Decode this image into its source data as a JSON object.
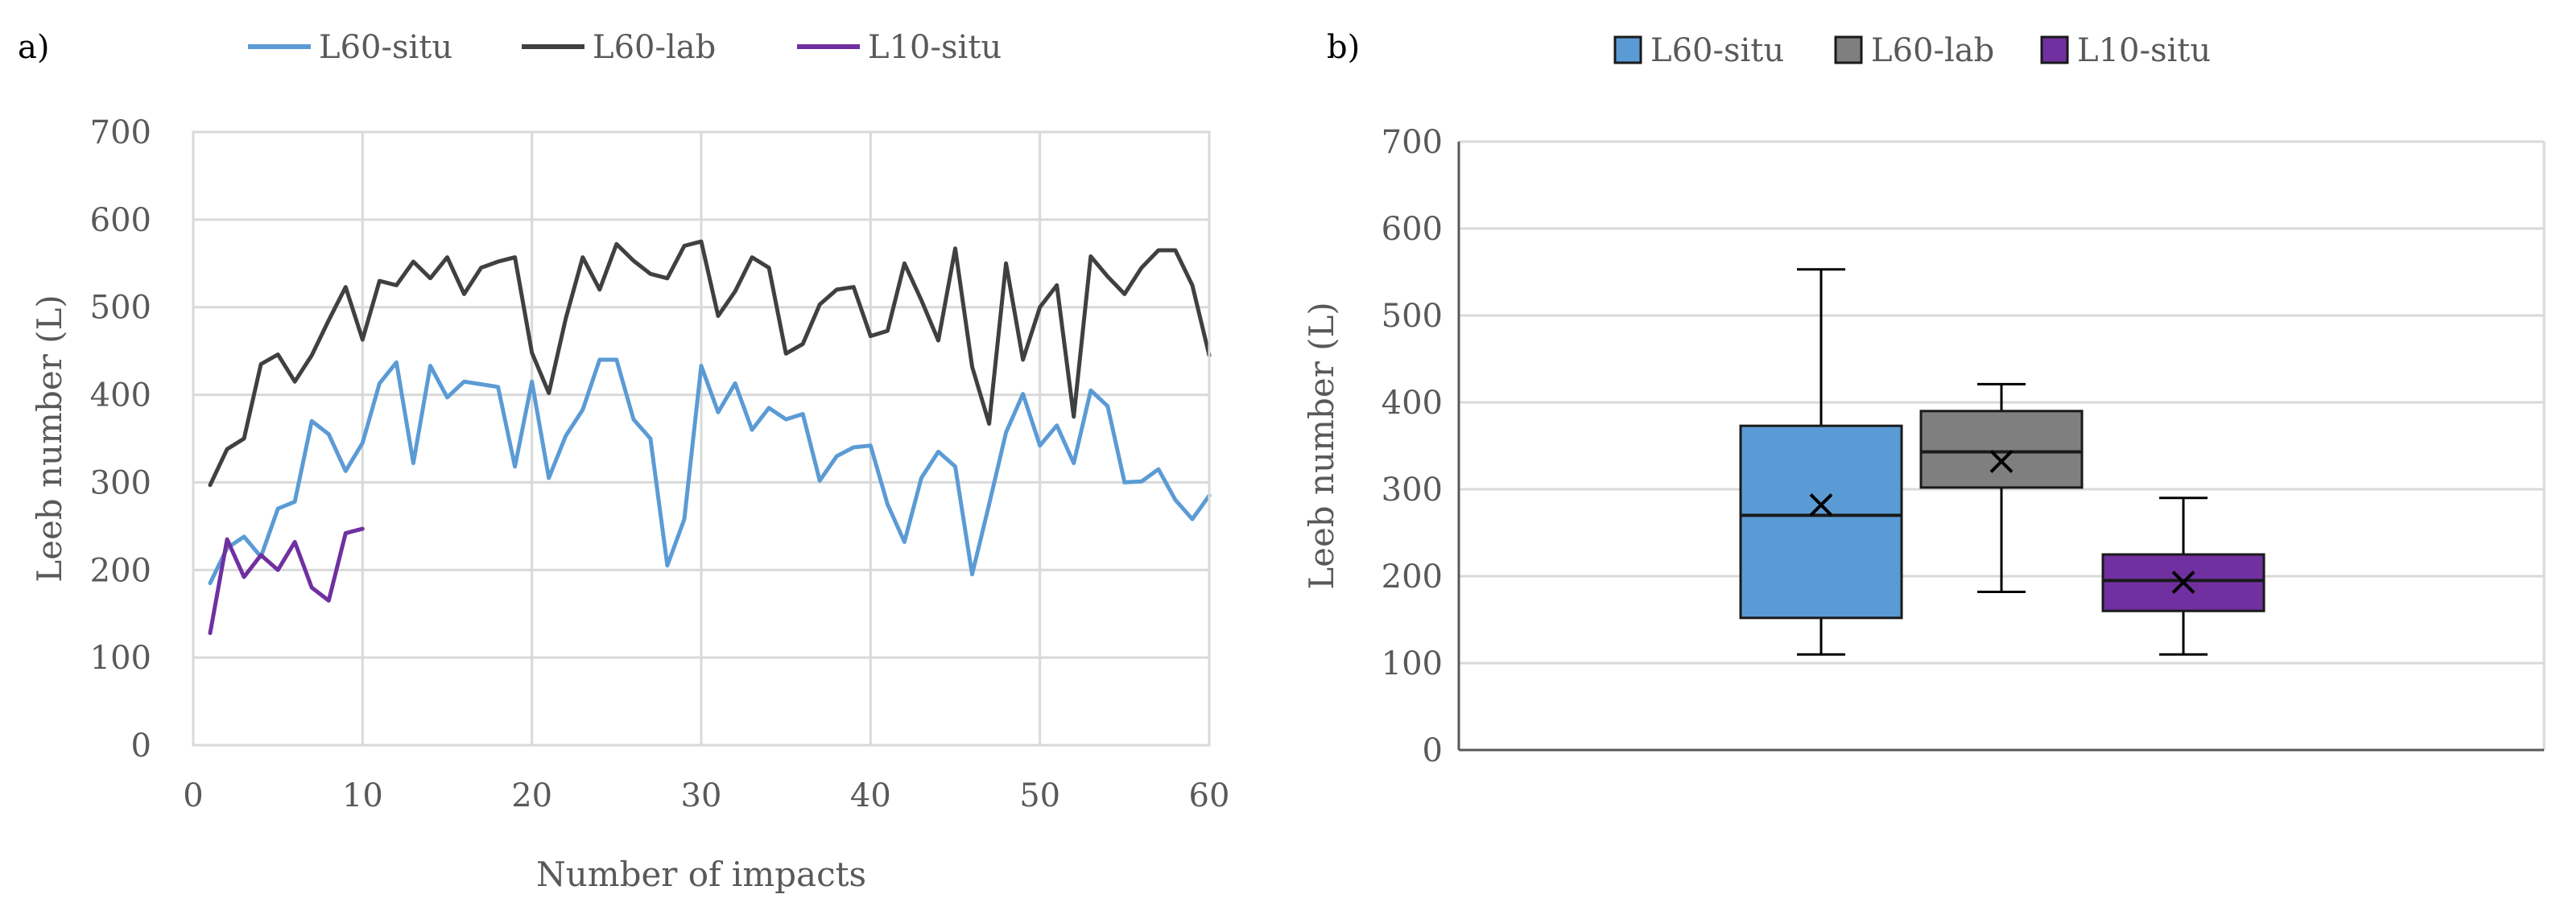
{
  "panels": {
    "a": {
      "label": "a)"
    },
    "b": {
      "label": "b)"
    }
  },
  "chart_data": [
    {
      "type": "line",
      "panel": "a",
      "title": "",
      "xlabel": "Number of impacts",
      "ylabel": "Leeb number (L)",
      "xlim": [
        0,
        60
      ],
      "ylim": [
        0,
        700
      ],
      "xticks": [
        0,
        10,
        20,
        30,
        40,
        50,
        60
      ],
      "yticks": [
        0,
        100,
        200,
        300,
        400,
        500,
        600,
        700
      ],
      "grid": true,
      "legend": "top",
      "series": [
        {
          "name": "L60-situ",
          "color": "#5b9bd5",
          "x": [
            1,
            2,
            3,
            4,
            5,
            6,
            7,
            8,
            9,
            10,
            11,
            12,
            13,
            14,
            15,
            16,
            17,
            18,
            19,
            20,
            21,
            22,
            23,
            24,
            25,
            26,
            27,
            28,
            29,
            30,
            31,
            32,
            33,
            34,
            35,
            36,
            37,
            38,
            39,
            40,
            41,
            42,
            43,
            44,
            45,
            46,
            47,
            48,
            49,
            50,
            51,
            52,
            53,
            54,
            55,
            56,
            57,
            58,
            59,
            60
          ],
          "values": [
            185,
            225,
            238,
            215,
            270,
            278,
            370,
            355,
            313,
            345,
            413,
            437,
            322,
            433,
            397,
            415,
            412,
            409,
            318,
            415,
            305,
            353,
            383,
            440,
            440,
            372,
            350,
            205,
            258,
            433,
            380,
            413,
            360,
            385,
            372,
            378,
            302,
            330,
            340,
            342,
            275,
            232,
            305,
            335,
            318,
            195,
            275,
            357,
            401,
            342,
            365,
            322,
            405,
            387,
            300,
            301,
            315,
            280,
            258,
            285
          ]
        },
        {
          "name": "L60-lab",
          "color": "#404040",
          "x": [
            1,
            2,
            3,
            4,
            5,
            6,
            7,
            8,
            9,
            10,
            11,
            12,
            13,
            14,
            15,
            16,
            17,
            18,
            19,
            20,
            21,
            22,
            23,
            24,
            25,
            26,
            27,
            28,
            29,
            30,
            31,
            32,
            33,
            34,
            35,
            36,
            37,
            38,
            39,
            40,
            41,
            42,
            43,
            44,
            45,
            46,
            47,
            48,
            49,
            50,
            51,
            52,
            53,
            54,
            55,
            56,
            57,
            58,
            59,
            60
          ],
          "values": [
            297,
            338,
            350,
            435,
            446,
            415,
            445,
            485,
            523,
            463,
            530,
            525,
            552,
            533,
            557,
            515,
            545,
            552,
            557,
            448,
            402,
            487,
            557,
            520,
            572,
            553,
            538,
            533,
            570,
            575,
            490,
            518,
            557,
            545,
            447,
            458,
            503,
            520,
            523,
            467,
            473,
            550,
            508,
            462,
            567,
            432,
            367,
            550,
            440,
            500,
            525,
            375,
            558,
            535,
            515,
            545,
            565,
            565,
            525,
            445
          ]
        },
        {
          "name": "L10-situ",
          "color": "#7030a0",
          "x": [
            1,
            2,
            3,
            4,
            5,
            6,
            7,
            8,
            9,
            10
          ],
          "values": [
            128,
            235,
            192,
            217,
            200,
            232,
            180,
            165,
            242,
            247
          ]
        }
      ]
    },
    {
      "type": "box",
      "panel": "b",
      "title": "",
      "xlabel": "",
      "ylabel": "Leeb number (L)",
      "ylim": [
        0,
        700
      ],
      "yticks": [
        0,
        100,
        200,
        300,
        400,
        500,
        600,
        700
      ],
      "grid": true,
      "legend": "top",
      "series": [
        {
          "name": "L60-situ",
          "color": "#5b9bd5",
          "min": 110,
          "q1": 152,
          "median": 270,
          "q3": 373,
          "max": 553,
          "mean": 282
        },
        {
          "name": "L60-lab",
          "color": "#7f7f7f",
          "min": 182,
          "q1": 302,
          "median": 343,
          "q3": 390,
          "max": 421,
          "mean": 332
        },
        {
          "name": "L10-situ",
          "color": "#7030a0",
          "min": 110,
          "q1": 160,
          "median": 195,
          "q3": 225,
          "max": 290,
          "mean": 193
        }
      ]
    }
  ]
}
